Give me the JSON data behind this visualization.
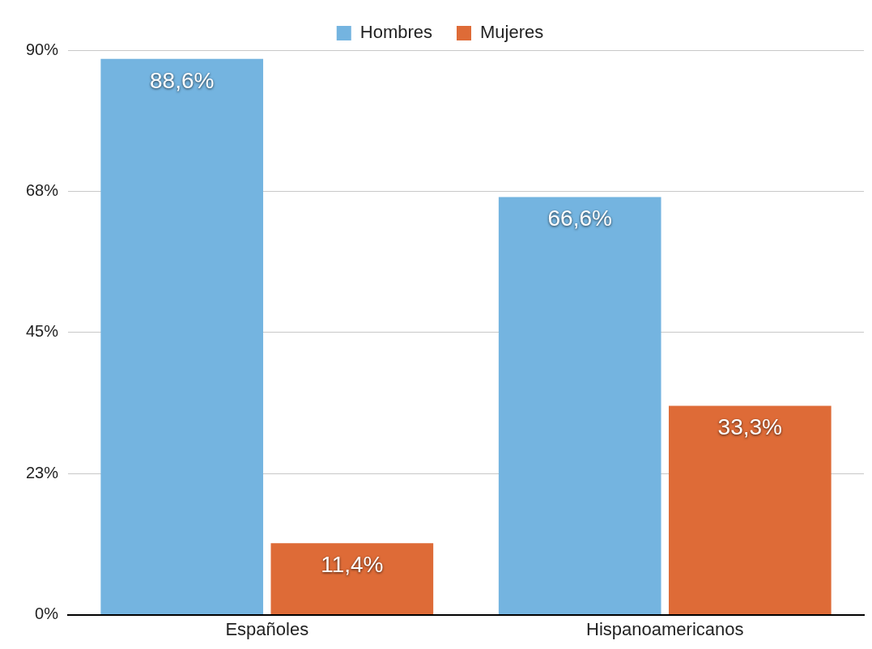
{
  "chart_data": {
    "type": "bar",
    "categories": [
      "Españoles",
      "Hispanoamericanos"
    ],
    "series": [
      {
        "name": "Hombres",
        "color": "#74b4e0",
        "values": [
          88.6,
          66.6
        ],
        "value_labels": [
          "88,6%",
          "66,6%"
        ]
      },
      {
        "name": "Mujeres",
        "color": "#de6b37",
        "values": [
          11.4,
          33.3
        ],
        "value_labels": [
          "11,4%",
          "33,3%"
        ]
      }
    ],
    "ylim": [
      0,
      90
    ],
    "yticks": [
      {
        "value": 0,
        "label": "0%"
      },
      {
        "value": 22.5,
        "label": "23%"
      },
      {
        "value": 45,
        "label": "45%"
      },
      {
        "value": 67.5,
        "label": "68%"
      },
      {
        "value": 90,
        "label": "90%"
      }
    ],
    "grid": "y",
    "legend": "top"
  }
}
